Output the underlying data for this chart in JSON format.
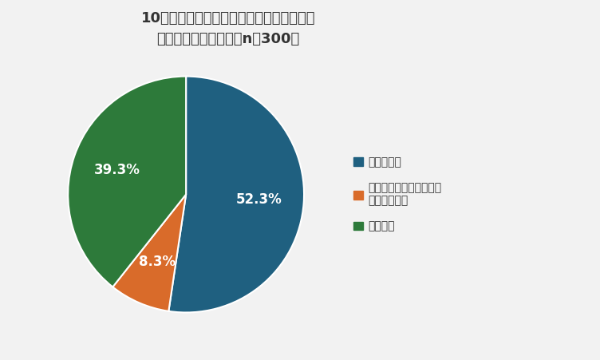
{
  "title_line1": "10月より最低賃金が引き上げられることを",
  "title_line2": "知っていますか？　（n＝300）",
  "slices": [
    52.3,
    8.3,
    39.3
  ],
  "colors": [
    "#1f6080",
    "#d96b2a",
    "#2d7a3a"
  ],
  "labels": [
    "52.3%",
    "8.3%",
    "39.3%"
  ],
  "legend_labels": [
    "知っている",
    "いくら引き上げられるか\nも知っている",
    "知らない"
  ],
  "startangle": 90,
  "background_color": "#f2f2f2"
}
